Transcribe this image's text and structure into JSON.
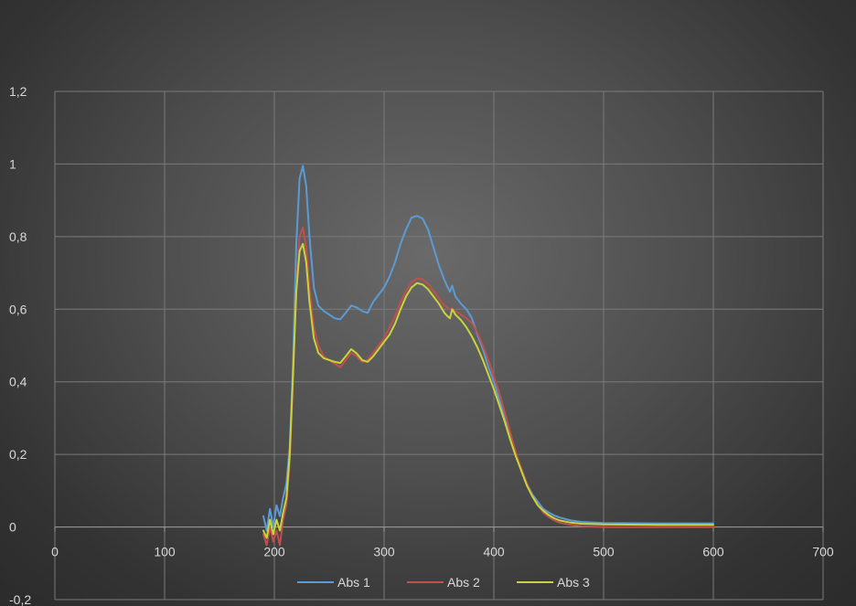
{
  "chart_data": {
    "type": "line",
    "title": "",
    "xlabel": "",
    "ylabel": "",
    "xlim": [
      0,
      700
    ],
    "ylim": [
      -0.2,
      1.2
    ],
    "x_ticks": [
      0,
      100,
      200,
      300,
      400,
      500,
      600,
      700
    ],
    "x_tick_labels": [
      "0",
      "100",
      "200",
      "300",
      "400",
      "500",
      "600",
      "700"
    ],
    "y_ticks": [
      -0.2,
      0,
      0.2,
      0.4,
      0.6,
      0.8,
      1,
      1.2
    ],
    "y_tick_labels": [
      "-0,2",
      "0",
      "0,2",
      "0,4",
      "0,6",
      "0,8",
      "1",
      "1,2"
    ],
    "grid": true,
    "legend_position": "bottom",
    "series": [
      {
        "name": "Abs 1",
        "color": "#5b9bd5",
        "points": [
          [
            190,
            0.03
          ],
          [
            193,
            -0.01
          ],
          [
            196,
            0.05
          ],
          [
            199,
            0.0
          ],
          [
            202,
            0.06
          ],
          [
            205,
            0.03
          ],
          [
            208,
            0.08
          ],
          [
            211,
            0.12
          ],
          [
            214,
            0.22
          ],
          [
            217,
            0.45
          ],
          [
            220,
            0.78
          ],
          [
            223,
            0.96
          ],
          [
            226,
            0.995
          ],
          [
            229,
            0.94
          ],
          [
            232,
            0.8
          ],
          [
            236,
            0.66
          ],
          [
            240,
            0.61
          ],
          [
            245,
            0.595
          ],
          [
            250,
            0.585
          ],
          [
            255,
            0.575
          ],
          [
            260,
            0.572
          ],
          [
            265,
            0.59
          ],
          [
            270,
            0.61
          ],
          [
            275,
            0.605
          ],
          [
            280,
            0.595
          ],
          [
            285,
            0.59
          ],
          [
            290,
            0.62
          ],
          [
            295,
            0.64
          ],
          [
            300,
            0.66
          ],
          [
            305,
            0.69
          ],
          [
            310,
            0.73
          ],
          [
            315,
            0.78
          ],
          [
            320,
            0.82
          ],
          [
            325,
            0.852
          ],
          [
            330,
            0.857
          ],
          [
            335,
            0.85
          ],
          [
            340,
            0.82
          ],
          [
            345,
            0.77
          ],
          [
            350,
            0.72
          ],
          [
            355,
            0.68
          ],
          [
            358,
            0.66
          ],
          [
            360,
            0.648
          ],
          [
            362,
            0.665
          ],
          [
            365,
            0.635
          ],
          [
            370,
            0.615
          ],
          [
            375,
            0.6
          ],
          [
            380,
            0.575
          ],
          [
            385,
            0.53
          ],
          [
            390,
            0.49
          ],
          [
            395,
            0.44
          ],
          [
            400,
            0.4
          ],
          [
            405,
            0.35
          ],
          [
            410,
            0.3
          ],
          [
            415,
            0.25
          ],
          [
            420,
            0.2
          ],
          [
            425,
            0.16
          ],
          [
            430,
            0.12
          ],
          [
            435,
            0.09
          ],
          [
            440,
            0.07
          ],
          [
            445,
            0.05
          ],
          [
            450,
            0.04
          ],
          [
            455,
            0.032
          ],
          [
            460,
            0.026
          ],
          [
            470,
            0.018
          ],
          [
            480,
            0.014
          ],
          [
            500,
            0.011
          ],
          [
            550,
            0.01
          ],
          [
            600,
            0.01
          ]
        ]
      },
      {
        "name": "Abs 2",
        "color": "#c0504d",
        "points": [
          [
            190,
            -0.02
          ],
          [
            193,
            -0.05
          ],
          [
            196,
            0.0
          ],
          [
            199,
            -0.04
          ],
          [
            202,
            -0.01
          ],
          [
            205,
            -0.05
          ],
          [
            208,
            0.02
          ],
          [
            211,
            0.06
          ],
          [
            214,
            0.18
          ],
          [
            217,
            0.4
          ],
          [
            220,
            0.66
          ],
          [
            223,
            0.8
          ],
          [
            226,
            0.825
          ],
          [
            229,
            0.77
          ],
          [
            232,
            0.66
          ],
          [
            236,
            0.55
          ],
          [
            240,
            0.5
          ],
          [
            245,
            0.47
          ],
          [
            250,
            0.46
          ],
          [
            255,
            0.45
          ],
          [
            260,
            0.44
          ],
          [
            265,
            0.46
          ],
          [
            270,
            0.48
          ],
          [
            275,
            0.47
          ],
          [
            280,
            0.455
          ],
          [
            285,
            0.46
          ],
          [
            290,
            0.48
          ],
          [
            295,
            0.5
          ],
          [
            300,
            0.52
          ],
          [
            305,
            0.55
          ],
          [
            310,
            0.58
          ],
          [
            315,
            0.62
          ],
          [
            320,
            0.65
          ],
          [
            325,
            0.675
          ],
          [
            330,
            0.685
          ],
          [
            335,
            0.682
          ],
          [
            340,
            0.67
          ],
          [
            345,
            0.65
          ],
          [
            350,
            0.63
          ],
          [
            355,
            0.61
          ],
          [
            360,
            0.6
          ],
          [
            362,
            0.6
          ],
          [
            365,
            0.595
          ],
          [
            370,
            0.585
          ],
          [
            375,
            0.575
          ],
          [
            380,
            0.562
          ],
          [
            385,
            0.535
          ],
          [
            390,
            0.5
          ],
          [
            395,
            0.46
          ],
          [
            400,
            0.415
          ],
          [
            405,
            0.37
          ],
          [
            410,
            0.315
          ],
          [
            415,
            0.26
          ],
          [
            420,
            0.205
          ],
          [
            425,
            0.16
          ],
          [
            430,
            0.12
          ],
          [
            435,
            0.085
          ],
          [
            440,
            0.06
          ],
          [
            445,
            0.04
          ],
          [
            450,
            0.028
          ],
          [
            455,
            0.018
          ],
          [
            460,
            0.012
          ],
          [
            470,
            0.006
          ],
          [
            480,
            0.002
          ],
          [
            500,
            0.0
          ],
          [
            550,
            0.0
          ],
          [
            600,
            0.0
          ]
        ]
      },
      {
        "name": "Abs 3",
        "color": "#c8d43a",
        "points": [
          [
            190,
            -0.01
          ],
          [
            193,
            -0.03
          ],
          [
            196,
            0.02
          ],
          [
            199,
            -0.02
          ],
          [
            202,
            0.02
          ],
          [
            205,
            -0.01
          ],
          [
            208,
            0.04
          ],
          [
            211,
            0.08
          ],
          [
            214,
            0.2
          ],
          [
            217,
            0.42
          ],
          [
            220,
            0.65
          ],
          [
            223,
            0.76
          ],
          [
            226,
            0.78
          ],
          [
            229,
            0.73
          ],
          [
            232,
            0.62
          ],
          [
            236,
            0.52
          ],
          [
            240,
            0.48
          ],
          [
            245,
            0.465
          ],
          [
            250,
            0.46
          ],
          [
            255,
            0.455
          ],
          [
            260,
            0.452
          ],
          [
            265,
            0.47
          ],
          [
            270,
            0.49
          ],
          [
            275,
            0.478
          ],
          [
            280,
            0.46
          ],
          [
            285,
            0.455
          ],
          [
            290,
            0.47
          ],
          [
            295,
            0.49
          ],
          [
            300,
            0.51
          ],
          [
            305,
            0.53
          ],
          [
            310,
            0.56
          ],
          [
            315,
            0.6
          ],
          [
            320,
            0.635
          ],
          [
            325,
            0.66
          ],
          [
            330,
            0.672
          ],
          [
            335,
            0.668
          ],
          [
            340,
            0.655
          ],
          [
            345,
            0.635
          ],
          [
            350,
            0.615
          ],
          [
            355,
            0.59
          ],
          [
            358,
            0.58
          ],
          [
            360,
            0.575
          ],
          [
            362,
            0.6
          ],
          [
            365,
            0.585
          ],
          [
            370,
            0.57
          ],
          [
            375,
            0.55
          ],
          [
            380,
            0.525
          ],
          [
            385,
            0.495
          ],
          [
            390,
            0.46
          ],
          [
            395,
            0.42
          ],
          [
            400,
            0.38
          ],
          [
            405,
            0.335
          ],
          [
            410,
            0.29
          ],
          [
            415,
            0.24
          ],
          [
            420,
            0.195
          ],
          [
            425,
            0.155
          ],
          [
            430,
            0.115
          ],
          [
            435,
            0.085
          ],
          [
            440,
            0.06
          ],
          [
            445,
            0.045
          ],
          [
            450,
            0.033
          ],
          [
            455,
            0.024
          ],
          [
            460,
            0.018
          ],
          [
            470,
            0.012
          ],
          [
            480,
            0.009
          ],
          [
            500,
            0.007
          ],
          [
            550,
            0.006
          ],
          [
            600,
            0.006
          ]
        ]
      }
    ]
  }
}
